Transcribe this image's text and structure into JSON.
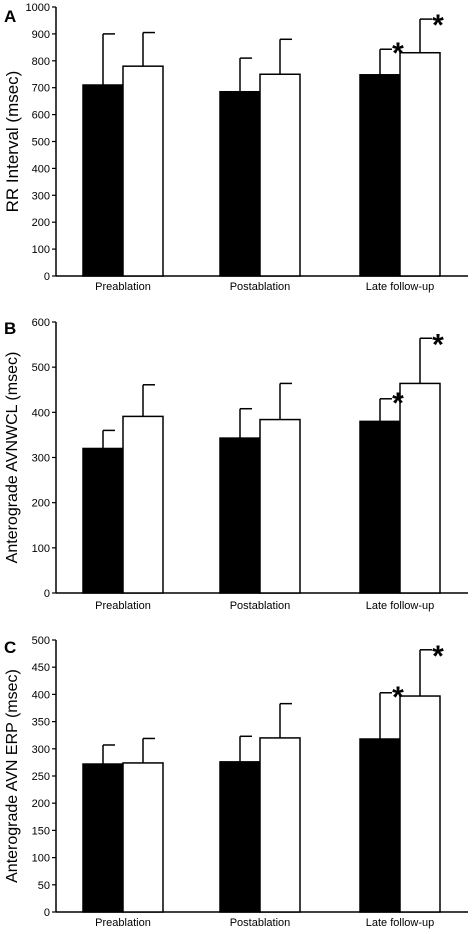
{
  "colors": {
    "filled_bar": "#000000",
    "open_bar": "#ffffff",
    "axis": "#000000"
  },
  "chart_data": [
    {
      "type": "bar",
      "panel_label": "A",
      "ylabel": "RR Interval (msec)",
      "categories": [
        "Preablation",
        "Postablation",
        "Late follow-up"
      ],
      "ylim": [
        0,
        1000
      ],
      "yticks": [
        0,
        100,
        200,
        300,
        400,
        500,
        600,
        700,
        800,
        900,
        1000
      ],
      "series": [
        {
          "style": "filled",
          "values": [
            710,
            685,
            748
          ],
          "errors": [
            190,
            125,
            95
          ]
        },
        {
          "style": "open",
          "values": [
            780,
            750,
            830
          ],
          "errors": [
            125,
            130,
            125
          ]
        }
      ],
      "annotations": [
        {
          "text": "*",
          "category": 2,
          "series": 0
        },
        {
          "text": "*",
          "category": 2,
          "series": 1
        }
      ]
    },
    {
      "type": "bar",
      "panel_label": "B",
      "ylabel": "Anterograde AVNWCL (msec)",
      "categories": [
        "Preablation",
        "Postablation",
        "Late follow-up"
      ],
      "ylim": [
        0,
        600
      ],
      "yticks": [
        0,
        100,
        200,
        300,
        400,
        500,
        600
      ],
      "series": [
        {
          "style": "filled",
          "values": [
            320,
            343,
            380
          ],
          "errors": [
            40,
            65,
            50
          ]
        },
        {
          "style": "open",
          "values": [
            391,
            384,
            464
          ],
          "errors": [
            70,
            80,
            100
          ]
        }
      ],
      "annotations": [
        {
          "text": "*",
          "category": 2,
          "series": 0
        },
        {
          "text": "*",
          "category": 2,
          "series": 1
        }
      ]
    },
    {
      "type": "bar",
      "panel_label": "C",
      "ylabel": "Anterograde AVN ERP (msec)",
      "categories": [
        "Preablation",
        "Postablation",
        "Late follow-up"
      ],
      "ylim": [
        0,
        500
      ],
      "yticks": [
        0,
        50,
        100,
        150,
        200,
        250,
        300,
        350,
        400,
        450,
        500
      ],
      "series": [
        {
          "style": "filled",
          "values": [
            272,
            276,
            318
          ],
          "errors": [
            35,
            47,
            85
          ]
        },
        {
          "style": "open",
          "values": [
            274,
            320,
            397
          ],
          "errors": [
            45,
            63,
            85
          ]
        }
      ],
      "annotations": [
        {
          "text": "*",
          "category": 2,
          "series": 0
        },
        {
          "text": "*",
          "category": 2,
          "series": 1
        }
      ]
    }
  ]
}
